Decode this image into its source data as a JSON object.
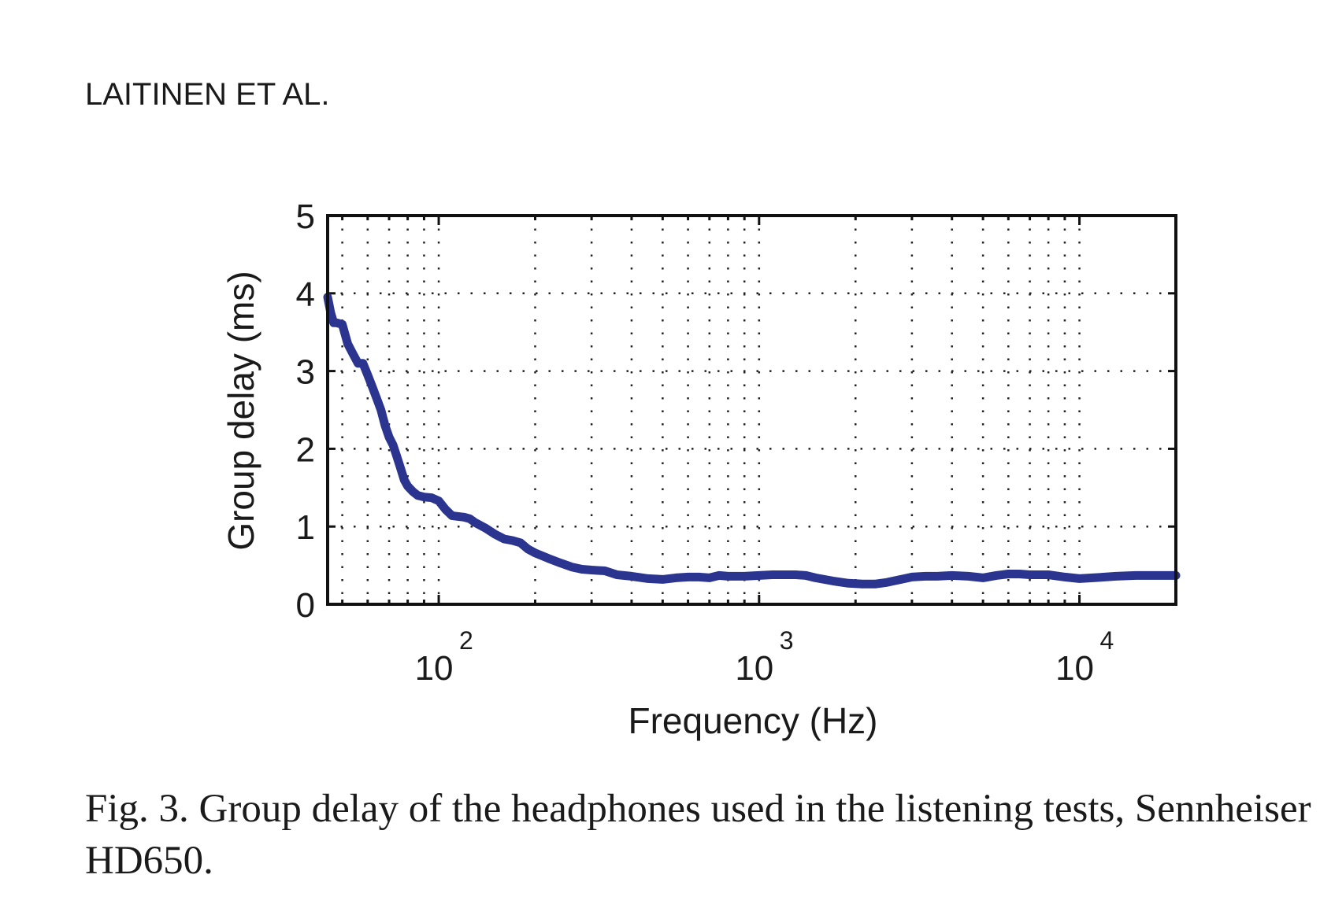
{
  "header": {
    "text": "LAITINEN ET AL."
  },
  "caption": {
    "text": "Fig. 3.  Group delay of the headphones used in the listening tests, Sennheiser HD650."
  },
  "chart_data": {
    "type": "line",
    "title": "",
    "xlabel": "Frequency (Hz)",
    "ylabel": "Group delay (ms)",
    "xscale": "log",
    "xlim": [
      45,
      20000
    ],
    "ylim": [
      0,
      5
    ],
    "xticks": [
      {
        "value": 100,
        "base": "10",
        "exp": "2"
      },
      {
        "value": 1000,
        "base": "10",
        "exp": "3"
      },
      {
        "value": 10000,
        "base": "10",
        "exp": "4"
      }
    ],
    "yticks": [
      0,
      1,
      2,
      3,
      4,
      5
    ],
    "grid": true,
    "grid_style": "dotted",
    "line_color": "#2b3590",
    "series": [
      {
        "name": "",
        "x": [
          45,
          46,
          47,
          48,
          50,
          52,
          54,
          56,
          58,
          60,
          62,
          64,
          66,
          68,
          70,
          72,
          74,
          76,
          78,
          80,
          83,
          86,
          90,
          95,
          100,
          105,
          110,
          115,
          120,
          125,
          130,
          140,
          150,
          160,
          170,
          180,
          190,
          200,
          220,
          240,
          260,
          280,
          300,
          330,
          360,
          400,
          450,
          500,
          550,
          600,
          650,
          700,
          750,
          800,
          900,
          1000,
          1100,
          1200,
          1300,
          1400,
          1500,
          1700,
          1900,
          2100,
          2300,
          2500,
          2700,
          3000,
          3300,
          3600,
          4000,
          4500,
          5000,
          5500,
          6000,
          6500,
          7000,
          7500,
          8000,
          9000,
          10000,
          11000,
          12000,
          13000,
          15000,
          17000,
          20000
        ],
        "y": [
          3.95,
          3.75,
          3.62,
          3.62,
          3.6,
          3.35,
          3.22,
          3.1,
          3.1,
          2.95,
          2.8,
          2.65,
          2.5,
          2.3,
          2.15,
          2.05,
          1.9,
          1.75,
          1.6,
          1.52,
          1.45,
          1.4,
          1.38,
          1.37,
          1.33,
          1.22,
          1.14,
          1.13,
          1.12,
          1.1,
          1.05,
          0.98,
          0.9,
          0.84,
          0.82,
          0.79,
          0.71,
          0.66,
          0.59,
          0.53,
          0.48,
          0.45,
          0.44,
          0.43,
          0.38,
          0.36,
          0.33,
          0.32,
          0.34,
          0.35,
          0.35,
          0.34,
          0.37,
          0.36,
          0.36,
          0.37,
          0.38,
          0.38,
          0.38,
          0.37,
          0.34,
          0.3,
          0.27,
          0.26,
          0.26,
          0.28,
          0.31,
          0.35,
          0.36,
          0.36,
          0.37,
          0.36,
          0.34,
          0.37,
          0.39,
          0.39,
          0.38,
          0.38,
          0.38,
          0.35,
          0.33,
          0.34,
          0.35,
          0.36,
          0.37,
          0.37,
          0.37
        ]
      }
    ]
  }
}
